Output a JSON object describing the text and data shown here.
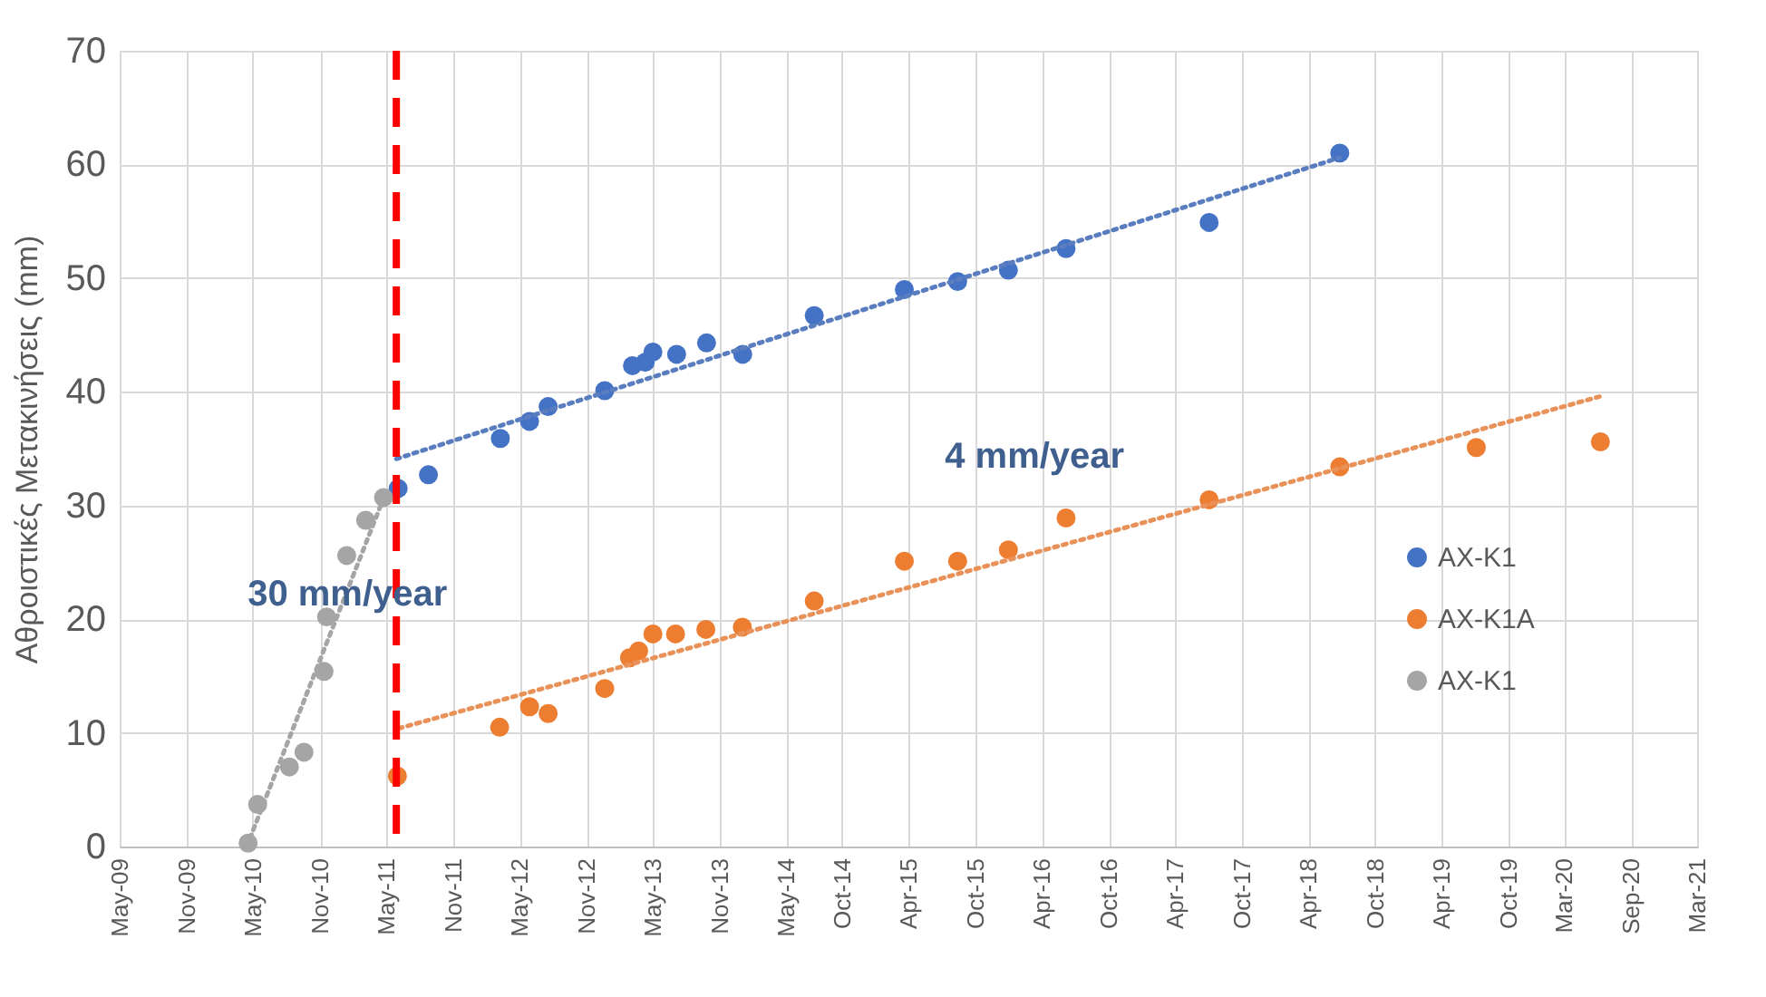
{
  "chart_data": {
    "type": "scatter",
    "ylabel": "Αθροιστικές Μετακινήσεις (mm)",
    "xlim": [
      "2009-05-01",
      "2021-03-01"
    ],
    "ylim": [
      0,
      70
    ],
    "yticks": [
      0,
      10,
      20,
      30,
      40,
      50,
      60,
      70
    ],
    "xticks": [
      {
        "value": "2009-05-01",
        "label": "May-09"
      },
      {
        "value": "2009-11-01",
        "label": "Nov-09"
      },
      {
        "value": "2010-05-01",
        "label": "May-10"
      },
      {
        "value": "2010-11-01",
        "label": "Nov-10"
      },
      {
        "value": "2011-05-01",
        "label": "May-11"
      },
      {
        "value": "2011-11-01",
        "label": "Nov-11"
      },
      {
        "value": "2012-05-01",
        "label": "May-12"
      },
      {
        "value": "2012-11-01",
        "label": "Nov-12"
      },
      {
        "value": "2013-05-01",
        "label": "May-13"
      },
      {
        "value": "2013-11-01",
        "label": "Nov-13"
      },
      {
        "value": "2014-05-01",
        "label": "May-14"
      },
      {
        "value": "2014-10-01",
        "label": "Oct-14"
      },
      {
        "value": "2015-04-01",
        "label": "Apr-15"
      },
      {
        "value": "2015-10-01",
        "label": "Oct-15"
      },
      {
        "value": "2016-04-01",
        "label": "Apr-16"
      },
      {
        "value": "2016-10-01",
        "label": "Oct-16"
      },
      {
        "value": "2017-04-01",
        "label": "Apr-17"
      },
      {
        "value": "2017-10-01",
        "label": "Oct-17"
      },
      {
        "value": "2018-04-01",
        "label": "Apr-18"
      },
      {
        "value": "2018-10-01",
        "label": "Oct-18"
      },
      {
        "value": "2019-04-01",
        "label": "Apr-19"
      },
      {
        "value": "2019-10-01",
        "label": "Oct-19"
      },
      {
        "value": "2020-03-01",
        "label": "Mar-20"
      },
      {
        "value": "2020-09-01",
        "label": "Sep-20"
      },
      {
        "value": "2021-03-01",
        "label": "Mar-21"
      }
    ],
    "grid": true,
    "legend": "right",
    "marker": "circle",
    "series": [
      {
        "name": "AX-K1",
        "type": "scatter",
        "color": "#4472c4",
        "x": [
          "2011-06-03",
          "2011-08-25",
          "2012-03-09",
          "2012-05-28",
          "2012-07-18",
          "2012-12-20",
          "2013-03-06",
          "2013-04-10",
          "2013-05-01",
          "2013-07-05",
          "2013-09-25",
          "2014-01-02",
          "2014-07-17",
          "2015-03-21",
          "2015-08-14",
          "2015-12-31",
          "2016-06-06",
          "2017-07-03",
          "2018-06-26"
        ],
        "values": [
          31.5,
          32.7,
          35.9,
          37.4,
          38.7,
          40.1,
          42.3,
          42.6,
          43.5,
          43.3,
          44.3,
          43.3,
          46.7,
          49.0,
          49.7,
          50.7,
          52.6,
          54.9,
          61.0
        ]
      },
      {
        "name": "AX-K1A",
        "type": "scatter",
        "color": "#ed7d31",
        "x": [
          "2011-06-01",
          "2012-03-07",
          "2012-05-28",
          "2012-07-18",
          "2012-12-20",
          "2013-02-26",
          "2013-03-23",
          "2013-05-01",
          "2013-07-02",
          "2013-09-23",
          "2014-01-01",
          "2014-07-17",
          "2015-03-21",
          "2015-08-14",
          "2015-12-31",
          "2016-06-06",
          "2017-07-03",
          "2018-06-26",
          "2019-07-05",
          "2020-06-09"
        ],
        "values": [
          6.2,
          10.5,
          12.3,
          11.7,
          13.9,
          16.6,
          17.2,
          18.7,
          18.7,
          19.1,
          19.3,
          21.6,
          25.1,
          25.1,
          26.1,
          28.9,
          30.5,
          33.4,
          35.1,
          35.6
        ]
      },
      {
        "name": "AX-K1",
        "type": "scatter",
        "color": "#a5a5a5",
        "x": [
          "2010-04-18",
          "2010-05-14",
          "2010-08-09",
          "2010-09-18",
          "2010-11-12",
          "2010-11-19",
          "2011-01-13",
          "2011-03-06",
          "2011-04-24"
        ],
        "values": [
          0.3,
          3.7,
          7.0,
          8.3,
          15.4,
          20.2,
          25.6,
          28.7,
          30.7
        ]
      },
      {
        "type": "line",
        "line_style": "dotted",
        "marker": "none",
        "color": "#5a7dbf",
        "x": [
          "2011-05-29",
          "2018-06-26"
        ],
        "values": [
          34.1,
          60.6
        ]
      },
      {
        "type": "line",
        "line_style": "dotted",
        "marker": "none",
        "color": "#e8925a",
        "x": [
          "2011-06-05",
          "2020-06-09"
        ],
        "values": [
          10.4,
          39.6
        ]
      },
      {
        "type": "line",
        "line_style": "dotted",
        "marker": "none",
        "color": "#a5a5a5",
        "x": [
          "2010-04-14",
          "2011-04-26"
        ],
        "values": [
          0,
          30.8
        ]
      }
    ],
    "ref_lines": [
      {
        "axis": "x",
        "value": "2011-05-29",
        "color": "#ff0000",
        "line_style": "dashed"
      }
    ],
    "annotations": [
      {
        "text": "30 mm/year",
        "x": "2011-01-15",
        "y": 22.2
      },
      "4 mm/year"
    ]
  }
}
